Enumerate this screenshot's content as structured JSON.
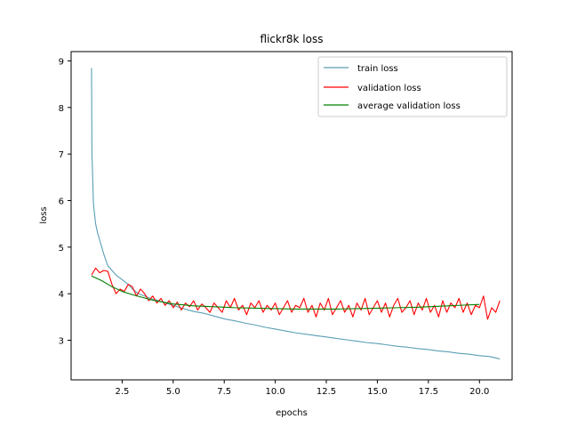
{
  "chart_data": {
    "type": "line",
    "title": "flickr8k loss",
    "xlabel": "epochs",
    "ylabel": "loss",
    "xlim": [
      0.0,
      21.6
    ],
    "ylim": [
      2.15,
      9.2
    ],
    "x_ticks": [
      2.5,
      5.0,
      7.5,
      10.0,
      12.5,
      15.0,
      17.5,
      20.0
    ],
    "x_tick_labels": [
      "2.5",
      "5.0",
      "7.5",
      "10.0",
      "12.5",
      "15.0",
      "17.5",
      "20.0"
    ],
    "y_ticks": [
      3,
      4,
      5,
      6,
      7,
      8,
      9
    ],
    "y_tick_labels": [
      "3",
      "4",
      "5",
      "6",
      "7",
      "8",
      "9"
    ],
    "grid": false,
    "legend_position": "top-right",
    "series": [
      {
        "name": "train loss",
        "color": "#5a9fb4",
        "x": [
          1.0,
          1.02,
          1.05,
          1.08,
          1.1,
          1.15,
          1.2,
          1.3,
          1.4,
          1.5,
          1.6,
          1.8,
          2.0,
          2.2,
          2.5,
          2.8,
          3.0,
          3.3,
          3.6,
          4.0,
          4.3,
          4.6,
          5.0,
          5.5,
          6.0,
          6.5,
          7.0,
          7.5,
          8.0,
          8.5,
          9.0,
          9.5,
          10.0,
          10.5,
          11.0,
          11.5,
          12.0,
          12.5,
          13.0,
          13.5,
          14.0,
          14.5,
          15.0,
          15.5,
          16.0,
          16.5,
          17.0,
          17.5,
          18.0,
          18.5,
          19.0,
          19.5,
          20.0,
          20.5,
          21.0
        ],
        "y": [
          8.85,
          7.0,
          6.6,
          6.1,
          5.9,
          5.7,
          5.5,
          5.3,
          5.15,
          5.0,
          4.85,
          4.6,
          4.5,
          4.4,
          4.3,
          4.2,
          4.1,
          4.0,
          3.95,
          3.88,
          3.85,
          3.8,
          3.75,
          3.68,
          3.62,
          3.58,
          3.52,
          3.46,
          3.42,
          3.37,
          3.33,
          3.28,
          3.24,
          3.2,
          3.16,
          3.13,
          3.1,
          3.07,
          3.04,
          3.01,
          2.98,
          2.95,
          2.93,
          2.9,
          2.87,
          2.85,
          2.82,
          2.8,
          2.77,
          2.75,
          2.72,
          2.7,
          2.67,
          2.65,
          2.6
        ]
      },
      {
        "name": "validation loss",
        "color": "#ff0000",
        "x": [
          1.0,
          1.2,
          1.4,
          1.6,
          1.8,
          2.0,
          2.2,
          2.4,
          2.6,
          2.8,
          3.0,
          3.2,
          3.4,
          3.6,
          3.8,
          4.0,
          4.2,
          4.4,
          4.6,
          4.8,
          5.0,
          5.2,
          5.4,
          5.6,
          5.8,
          6.0,
          6.2,
          6.4,
          6.6,
          6.8,
          7.0,
          7.2,
          7.4,
          7.6,
          7.8,
          8.0,
          8.2,
          8.4,
          8.6,
          8.8,
          9.0,
          9.2,
          9.4,
          9.6,
          9.8,
          10.0,
          10.2,
          10.4,
          10.6,
          10.8,
          11.0,
          11.2,
          11.4,
          11.6,
          11.8,
          12.0,
          12.2,
          12.4,
          12.6,
          12.8,
          13.0,
          13.2,
          13.4,
          13.6,
          13.8,
          14.0,
          14.2,
          14.4,
          14.6,
          14.8,
          15.0,
          15.2,
          15.4,
          15.6,
          15.8,
          16.0,
          16.2,
          16.4,
          16.6,
          16.8,
          17.0,
          17.2,
          17.4,
          17.6,
          17.8,
          18.0,
          18.2,
          18.4,
          18.6,
          18.8,
          19.0,
          19.2,
          19.4,
          19.6,
          19.8,
          20.0,
          20.2,
          20.4,
          20.6,
          20.8,
          21.0
        ],
        "y": [
          4.4,
          4.55,
          4.45,
          4.5,
          4.48,
          4.2,
          4.0,
          4.1,
          4.05,
          4.2,
          4.15,
          3.95,
          4.1,
          4.0,
          3.85,
          3.95,
          3.8,
          3.9,
          3.75,
          3.85,
          3.7,
          3.82,
          3.65,
          3.8,
          3.72,
          3.85,
          3.65,
          3.78,
          3.7,
          3.6,
          3.8,
          3.7,
          3.6,
          3.85,
          3.7,
          3.9,
          3.65,
          3.75,
          3.55,
          3.8,
          3.7,
          3.85,
          3.6,
          3.75,
          3.65,
          3.8,
          3.55,
          3.7,
          3.85,
          3.6,
          3.75,
          3.7,
          3.9,
          3.6,
          3.75,
          3.5,
          3.8,
          3.65,
          3.9,
          3.55,
          3.7,
          3.85,
          3.6,
          3.75,
          3.5,
          3.8,
          3.65,
          3.9,
          3.55,
          3.7,
          3.85,
          3.6,
          3.8,
          3.5,
          3.75,
          3.9,
          3.6,
          3.7,
          3.85,
          3.55,
          3.8,
          3.65,
          3.9,
          3.6,
          3.75,
          3.5,
          3.85,
          3.6,
          3.8,
          3.7,
          3.9,
          3.6,
          3.8,
          3.55,
          3.75,
          3.7,
          3.95,
          3.45,
          3.7,
          3.6,
          3.85
        ]
      },
      {
        "name": "average validation loss",
        "color": "#008000",
        "x": [
          1.0,
          1.5,
          2.0,
          2.5,
          3.0,
          3.5,
          4.0,
          4.5,
          5.0,
          5.5,
          6.0,
          7.0,
          8.0,
          9.0,
          10.0,
          11.0,
          12.0,
          13.0,
          14.0,
          15.0,
          16.0,
          17.0,
          18.0,
          19.0,
          20.0
        ],
        "y": [
          4.38,
          4.28,
          4.15,
          4.05,
          3.98,
          3.92,
          3.86,
          3.82,
          3.78,
          3.76,
          3.74,
          3.72,
          3.7,
          3.69,
          3.68,
          3.67,
          3.67,
          3.67,
          3.68,
          3.69,
          3.7,
          3.71,
          3.73,
          3.75,
          3.77
        ]
      }
    ]
  }
}
